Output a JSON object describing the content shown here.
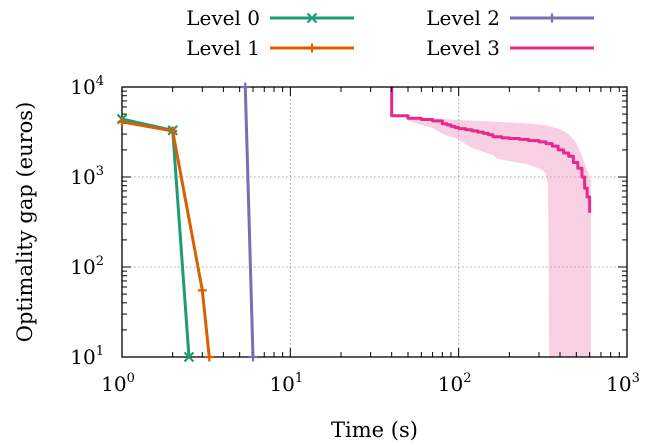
{
  "chart_data": {
    "type": "line",
    "xlabel": "Time (s)",
    "ylabel": "Optimality gap (euros)",
    "x_scale": "log",
    "y_scale": "log",
    "xlim": [
      1,
      1000
    ],
    "ylim": [
      10,
      10000
    ],
    "x_ticks": [
      {
        "value": 1,
        "base": "10",
        "exp": "0"
      },
      {
        "value": 10,
        "base": "10",
        "exp": "1"
      },
      {
        "value": 100,
        "base": "10",
        "exp": "2"
      },
      {
        "value": 1000,
        "base": "10",
        "exp": "3"
      }
    ],
    "y_ticks": [
      {
        "value": 10,
        "base": "10",
        "exp": "1"
      },
      {
        "value": 100,
        "base": "10",
        "exp": "2"
      },
      {
        "value": 1000,
        "base": "10",
        "exp": "3"
      },
      {
        "value": 10000,
        "base": "10",
        "exp": "4"
      }
    ],
    "grid": true,
    "legend_position": "top, above plot, two columns",
    "series": [
      {
        "name": "Level 0",
        "color": "#1b9e77",
        "marker": "x",
        "points": [
          [
            1,
            4400
          ],
          [
            2,
            3300
          ],
          [
            2.5,
            10
          ]
        ]
      },
      {
        "name": "Level 1",
        "color": "#d95f02",
        "marker": "plus",
        "points": [
          [
            1,
            4100
          ],
          [
            2,
            3250
          ],
          [
            3,
            55
          ],
          [
            3.3,
            10
          ]
        ]
      },
      {
        "name": "Level 2",
        "color": "#7570b3",
        "marker": "plus",
        "points": [
          [
            5.4,
            10000
          ],
          [
            6,
            10
          ]
        ]
      },
      {
        "name": "Level 3",
        "color": "#e7298a",
        "marker": "none",
        "points": [
          [
            40,
            10000
          ],
          [
            40,
            4800
          ],
          [
            48,
            4800
          ],
          [
            50,
            4500
          ],
          [
            60,
            4350
          ],
          [
            70,
            4200
          ],
          [
            80,
            3900
          ],
          [
            85,
            3800
          ],
          [
            90,
            3650
          ],
          [
            95,
            3550
          ],
          [
            100,
            3450
          ],
          [
            110,
            3350
          ],
          [
            120,
            3250
          ],
          [
            130,
            3150
          ],
          [
            140,
            3050
          ],
          [
            150,
            2950
          ],
          [
            160,
            2800
          ],
          [
            180,
            2720
          ],
          [
            200,
            2680
          ],
          [
            230,
            2620
          ],
          [
            260,
            2540
          ],
          [
            300,
            2460
          ],
          [
            330,
            2350
          ],
          [
            360,
            2200
          ],
          [
            390,
            2000
          ],
          [
            420,
            1850
          ],
          [
            450,
            1700
          ],
          [
            480,
            1450
          ],
          [
            510,
            1250
          ],
          [
            540,
            1000
          ],
          [
            560,
            750
          ],
          [
            580,
            600
          ],
          [
            600,
            400
          ]
        ],
        "band_upper": [
          [
            40,
            10000
          ],
          [
            40,
            4800
          ],
          [
            48,
            4800
          ],
          [
            50,
            4600
          ],
          [
            60,
            4500
          ],
          [
            80,
            4400
          ],
          [
            100,
            4300
          ],
          [
            130,
            4200
          ],
          [
            170,
            4100
          ],
          [
            220,
            4000
          ],
          [
            280,
            3900
          ],
          [
            340,
            3700
          ],
          [
            400,
            3400
          ],
          [
            450,
            3000
          ],
          [
            500,
            2400
          ],
          [
            540,
            1700
          ],
          [
            580,
            1200
          ],
          [
            610,
            900
          ]
        ],
        "band_lower": [
          [
            40,
            4800
          ],
          [
            48,
            4800
          ],
          [
            50,
            4200
          ],
          [
            60,
            3800
          ],
          [
            70,
            3500
          ],
          [
            80,
            3000
          ],
          [
            100,
            2600
          ],
          [
            120,
            2100
          ],
          [
            140,
            1900
          ],
          [
            160,
            1750
          ],
          [
            170,
            1600
          ],
          [
            200,
            1500
          ],
          [
            250,
            1400
          ],
          [
            300,
            1250
          ],
          [
            330,
            1100
          ],
          [
            340,
            800
          ],
          [
            345,
            10
          ]
        ]
      }
    ]
  }
}
